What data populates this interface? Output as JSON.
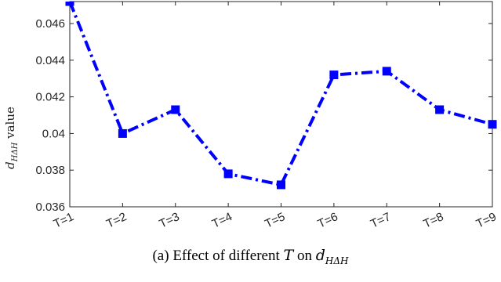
{
  "chart_data": {
    "type": "line",
    "categories": [
      "T=1",
      "T=2",
      "T=3",
      "T=4",
      "T=5",
      "T=6",
      "T=7",
      "T=8",
      "T=9"
    ],
    "series": [
      {
        "values": [
          0.0472,
          0.04,
          0.0413,
          0.0378,
          0.0372,
          0.0432,
          0.0434,
          0.0413,
          0.0405
        ]
      }
    ],
    "ylabel": "d_HΔH value",
    "ylim": [
      0.036,
      0.0472
    ],
    "yticks": [
      0.036,
      0.038,
      0.04,
      0.042,
      0.044,
      0.046
    ],
    "ytick_labels": [
      "0.036",
      "0.038",
      "0.04",
      "0.042",
      "0.044",
      "0.046"
    ],
    "grid": false,
    "line_style": "dash-dot",
    "marker": "square",
    "color": "#0000ff"
  },
  "caption": {
    "prefix": "(a) Effect of different ",
    "var": "T",
    "middle": " on ",
    "sym": "d",
    "sub": "HΔH"
  }
}
